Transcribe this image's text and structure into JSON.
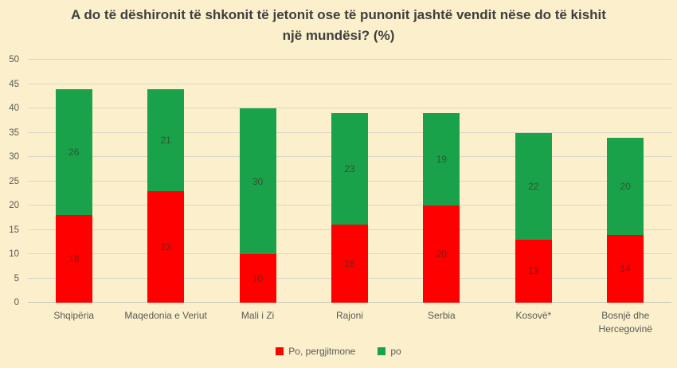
{
  "title": "A do të dëshironit të shkonit të jetonit ose të punonit jashtë vendit nëse do të kishit një mundësi? (%)",
  "colors": {
    "background": "#FBF0CB",
    "gridline": "#DAD7C9",
    "title_text": "#3F3F3F",
    "axis_text": "#595959"
  },
  "chart_data": {
    "type": "bar",
    "stacked": true,
    "title": "A do të dëshironit të shkonit të jetonit ose të punonit jashtë vendit nëse do të kishit një mundësi? (%)",
    "xlabel": "",
    "ylabel": "",
    "ylim": [
      0,
      50
    ],
    "yticks": [
      0,
      5,
      10,
      15,
      20,
      25,
      30,
      35,
      40,
      45,
      50
    ],
    "grid": true,
    "legend_position": "bottom",
    "categories": [
      "Shqipëria",
      "Maqedonia e Veriut",
      "Mali i Zi",
      "Rajoni",
      "Serbia",
      "Kosovë*",
      "Bosnjë dhe Hercegovinë"
    ],
    "series": [
      {
        "name": "Po, pergjitmone",
        "color": "#FE0000",
        "label_color": "#7B1E1A",
        "values": [
          18,
          23,
          10,
          16,
          20,
          13,
          14
        ]
      },
      {
        "name": "po",
        "color": "#1AA24A",
        "label_color": "#2E5535",
        "values": [
          26,
          21,
          30,
          23,
          19,
          22,
          20
        ]
      }
    ],
    "totals": [
      44,
      44,
      40,
      39,
      39,
      35,
      34
    ]
  }
}
